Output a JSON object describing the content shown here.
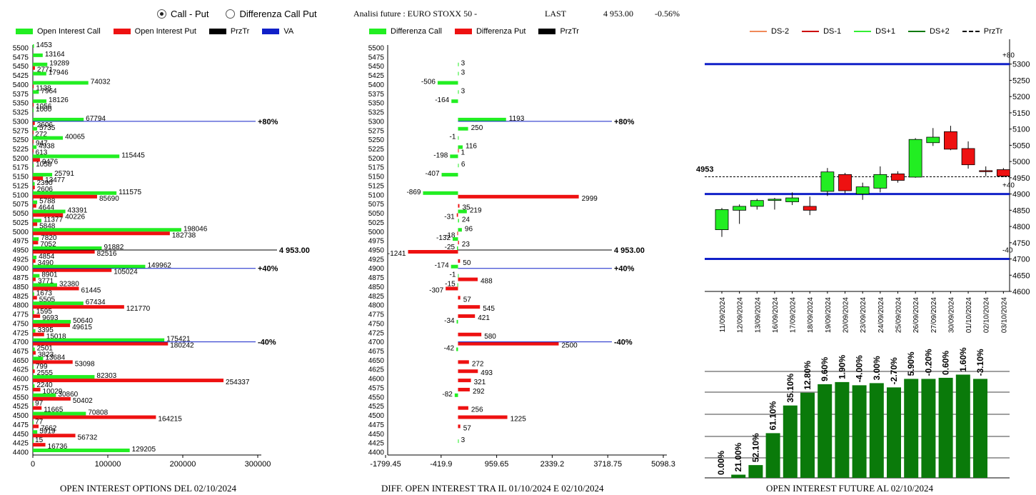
{
  "options": {
    "call_put": "Call - Put",
    "diff_call_put": "Differenza Call Put"
  },
  "header": {
    "label": "Analisi future : EURO STOXX 50 -",
    "last_label": "LAST",
    "last_value": "4 953.00",
    "change": "-0.56%"
  },
  "colors": {
    "call": "#22ee22",
    "put": "#ee1111",
    "prztr": "#000000",
    "va": "#1020c8",
    "future_bar": "#0a7a0a"
  },
  "legend_left": [
    "Open Interest Call",
    "Open Interest Put",
    "PrzTr",
    "VA"
  ],
  "legend_mid": [
    "Differenza Call",
    "Differenza Put",
    "PrzTr"
  ],
  "legend_right": [
    "DS-2",
    "DS-1",
    "DS+1",
    "DS+2",
    "PrzTr"
  ],
  "captions": {
    "left": "OPEN INTEREST OPTIONS DEL 02/10/2024",
    "mid": "DIFF. OPEN INTEREST TRA IL 01/10/2024 E 02/10/2024",
    "right": "OPEN INTEREST FUTURE AL 02/10/2024"
  },
  "chart_data": [
    {
      "type": "bar",
      "orientation": "horizontal",
      "strikes": [
        5500,
        5475,
        5450,
        5425,
        5400,
        5375,
        5350,
        5325,
        5300,
        5275,
        5250,
        5225,
        5200,
        5175,
        5150,
        5125,
        5100,
        5075,
        5050,
        5025,
        5000,
        4975,
        4950,
        4925,
        4900,
        4875,
        4850,
        4825,
        4800,
        4775,
        4750,
        4725,
        4700,
        4675,
        4650,
        4625,
        4600,
        4575,
        4550,
        4525,
        4500,
        4475,
        4450,
        4425,
        4400
      ],
      "series": [
        {
          "name": "Open Interest Call",
          "values": [
            1453,
            13164,
            19289,
            17946,
            74032,
            7964,
            18126,
            1000,
            67794,
            5735,
            40065,
            4938,
            115445,
            1058,
            25791,
            2390,
            111575,
            5788,
            43391,
            11377,
            198046,
            7820,
            91882,
            4854,
            149962,
            8901,
            32380,
            1673,
            67434,
            1595,
            50640,
            3395,
            175421,
            2501,
            13684,
            799,
            82303,
            2240,
            30860,
            97,
            70808,
            77,
            5919,
            15,
            129205
          ]
        },
        {
          "name": "Open Interest Put",
          "values": [
            0,
            0,
            2771,
            0,
            1138,
            0,
            1056,
            0,
            2606,
            272,
            947,
            613,
            9476,
            0,
            13477,
            2606,
            85690,
            4644,
            40226,
            5848,
            182738,
            7052,
            82516,
            3490,
            105024,
            3771,
            61445,
            5505,
            121770,
            9693,
            49615,
            15018,
            180242,
            3823,
            53098,
            2555,
            254337,
            10029,
            50402,
            11665,
            164215,
            7662,
            56732,
            16736,
            0
          ]
        }
      ],
      "xlim": [
        0,
        300000
      ],
      "xticks": [
        "0",
        "100000",
        "200000",
        "300000"
      ],
      "reference_lines": [
        {
          "strike": 5300,
          "label": "+80%"
        },
        {
          "strike": 4950,
          "label": "4 953.00"
        },
        {
          "strike": 4900,
          "label": "+40%"
        },
        {
          "strike": 4700,
          "label": "-40%"
        }
      ]
    },
    {
      "type": "bar",
      "orientation": "horizontal",
      "strikes": [
        5500,
        5475,
        5450,
        5425,
        5400,
        5375,
        5350,
        5325,
        5300,
        5275,
        5250,
        5225,
        5200,
        5175,
        5150,
        5125,
        5100,
        5075,
        5050,
        5025,
        5000,
        4975,
        4950,
        4925,
        4900,
        4875,
        4850,
        4825,
        4800,
        4775,
        4750,
        4725,
        4700,
        4675,
        4650,
        4625,
        4600,
        4575,
        4550,
        4525,
        4500,
        4475,
        4450,
        4425,
        4400
      ],
      "series": [
        {
          "name": "Differenza Call",
          "labels": [
            "",
            "",
            "3",
            "3",
            "-506",
            "3",
            "-164",
            "",
            "1193",
            "250",
            "-1",
            "116",
            "-198",
            "6",
            "-407",
            "",
            "-869",
            "",
            "219",
            "24",
            "96",
            "-132",
            "-25",
            "",
            "-174",
            "-1",
            "-15",
            "",
            "",
            "",
            "-34",
            "",
            "",
            "-42",
            "",
            "",
            "",
            "",
            "-82",
            "",
            "",
            "",
            "",
            "3",
            ""
          ],
          "values": [
            0,
            0,
            3,
            3,
            -506,
            3,
            -164,
            0,
            1193,
            250,
            -1,
            116,
            -198,
            6,
            -407,
            0,
            -869,
            0,
            219,
            24,
            96,
            -132,
            -25,
            0,
            -174,
            -1,
            -15,
            0,
            0,
            0,
            -34,
            0,
            0,
            -42,
            0,
            0,
            0,
            0,
            -82,
            0,
            0,
            0,
            0,
            3,
            0
          ]
        },
        {
          "name": "Differenza Put",
          "labels": [
            "",
            "",
            "",
            "",
            "",
            "",
            "",
            "",
            "",
            "",
            "",
            "1",
            "",
            "",
            "",
            "",
            "2999",
            "35",
            "-31",
            "",
            "-18",
            "23",
            "-1241",
            "50",
            "",
            "488",
            "-307",
            "57",
            "545",
            "421",
            "",
            "580",
            "2500",
            "",
            "272",
            "493",
            "321",
            "292",
            "",
            "256",
            "1225",
            "57",
            "",
            "",
            ""
          ],
          "values": [
            0,
            0,
            0,
            0,
            0,
            0,
            0,
            0,
            0,
            0,
            0,
            1,
            0,
            0,
            0,
            0,
            2999,
            35,
            -31,
            0,
            -18,
            23,
            -1241,
            50,
            0,
            488,
            -307,
            57,
            545,
            421,
            0,
            580,
            2500,
            0,
            272,
            493,
            321,
            292,
            0,
            256,
            1225,
            57,
            0,
            0,
            0
          ]
        }
      ],
      "xlim": [
        -1799.45,
        5098.3
      ],
      "xticks": [
        "-1799.45",
        "-419.9",
        "959.65",
        "2339.2",
        "3718.75",
        "5098.3"
      ],
      "reference_lines": [
        {
          "strike": 5300,
          "label": "+80%"
        },
        {
          "strike": 4950,
          "label": "4 953.00"
        },
        {
          "strike": 4900,
          "label": "+40%"
        },
        {
          "strike": 4700,
          "label": "-40%"
        }
      ]
    },
    {
      "type": "candlestick",
      "dates": [
        "11/09/2024",
        "12/09/2024",
        "13/09/2024",
        "16/09/2024",
        "17/09/2024",
        "18/09/2024",
        "19/09/2024",
        "20/09/2024",
        "23/09/2024",
        "24/09/2024",
        "25/09/2024",
        "26/09/2024",
        "27/09/2024",
        "30/09/2024",
        "01/10/2024",
        "02/10/2024",
        "03/10/2024"
      ],
      "ohlc": [
        [
          4790,
          4857,
          4768,
          4852
        ],
        [
          4850,
          4868,
          4808,
          4862
        ],
        [
          4862,
          4885,
          4852,
          4880
        ],
        [
          4880,
          4888,
          4852,
          4884
        ],
        [
          4876,
          4905,
          4866,
          4888
        ],
        [
          4862,
          4892,
          4835,
          4850
        ],
        [
          4908,
          4980,
          4894,
          4968
        ],
        [
          4960,
          4965,
          4902,
          4910
        ],
        [
          4900,
          4935,
          4882,
          4922
        ],
        [
          4918,
          4985,
          4905,
          4960
        ],
        [
          4962,
          4970,
          4935,
          4942
        ],
        [
          4952,
          5072,
          4950,
          5068
        ],
        [
          5058,
          5103,
          5048,
          5075
        ],
        [
          5092,
          5110,
          5035,
          5038
        ],
        [
          5040,
          5062,
          4978,
          4990
        ],
        [
          4972,
          4985,
          4955,
          4970
        ],
        [
          4975,
          4980,
          4952,
          4955
        ]
      ],
      "ylim": [
        4600,
        5350
      ],
      "yticks": [
        "4600",
        "4650",
        "4700",
        "4750",
        "4800",
        "4850",
        "4900",
        "4950",
        "5000",
        "5050",
        "5100",
        "5150",
        "5200",
        "5250",
        "5300"
      ],
      "bands": [
        {
          "value": 5300,
          "label": "+80"
        },
        {
          "value": 4900,
          "label": "+40"
        },
        {
          "value": 4700,
          "label": "-40"
        }
      ],
      "prztr": {
        "value": 4953,
        "label": "4953"
      }
    },
    {
      "type": "bar",
      "values": [
        0.0,
        21.0,
        52.1,
        61.1,
        35.1,
        12.8,
        9.6,
        1.9,
        -4.0,
        3.0,
        -2.7,
        5.9,
        -0.2,
        0.6,
        1.6,
        -3.1
      ],
      "labels": [
        "0.00%",
        "21.00%",
        "52.10%",
        "61.10%",
        "35.10%",
        "12.80%",
        "9.60%",
        "1.90%",
        "-4.00%",
        "3.00%",
        "-2.70%",
        "5.90%",
        "-0.20%",
        "0.60%",
        "1.60%",
        "-3.10%"
      ],
      "bar_levels": [
        0.0,
        0.03,
        0.12,
        0.42,
        0.68,
        0.8,
        0.88,
        0.9,
        0.87,
        0.89,
        0.85,
        0.93,
        0.93,
        0.94,
        0.97,
        0.93
      ]
    }
  ]
}
